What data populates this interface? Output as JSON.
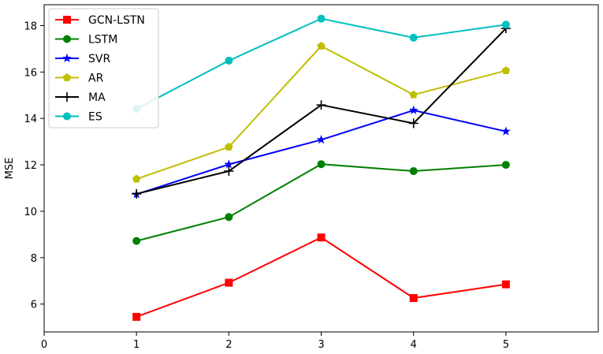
{
  "chart_data": {
    "type": "line",
    "title": "",
    "xlabel": "",
    "ylabel": "MSE",
    "xlim": [
      0,
      6
    ],
    "ylim": [
      4.8,
      18.9
    ],
    "xticks": [
      0,
      1,
      2,
      3,
      4,
      5
    ],
    "yticks": [
      6,
      8,
      10,
      12,
      14,
      16,
      18
    ],
    "grid": false,
    "legend_position": "top-left",
    "x": [
      1,
      2,
      3,
      4,
      5
    ],
    "series": [
      {
        "name": "GCN-LSTN",
        "color": "#ff0000",
        "marker": "square",
        "values": [
          5.45,
          6.92,
          8.87,
          6.26,
          6.85
        ]
      },
      {
        "name": "LSTM",
        "color": "#008000",
        "marker": "circle",
        "values": [
          8.72,
          9.75,
          12.03,
          11.73,
          12.0
        ]
      },
      {
        "name": "SVR",
        "color": "#0000ff",
        "marker": "star",
        "values": [
          10.73,
          12.02,
          13.08,
          14.35,
          13.44
        ]
      },
      {
        "name": "AR",
        "color": "#bfbf00",
        "marker": "pentagon",
        "values": [
          11.39,
          12.77,
          17.12,
          15.02,
          16.06
        ]
      },
      {
        "name": "MA",
        "color": "#000000",
        "marker": "plus",
        "values": [
          10.75,
          11.73,
          14.58,
          13.79,
          17.88
        ]
      },
      {
        "name": "ES",
        "color": "#00bfbf",
        "marker": "circle",
        "values": [
          14.41,
          16.49,
          18.3,
          17.48,
          18.04
        ]
      }
    ]
  }
}
